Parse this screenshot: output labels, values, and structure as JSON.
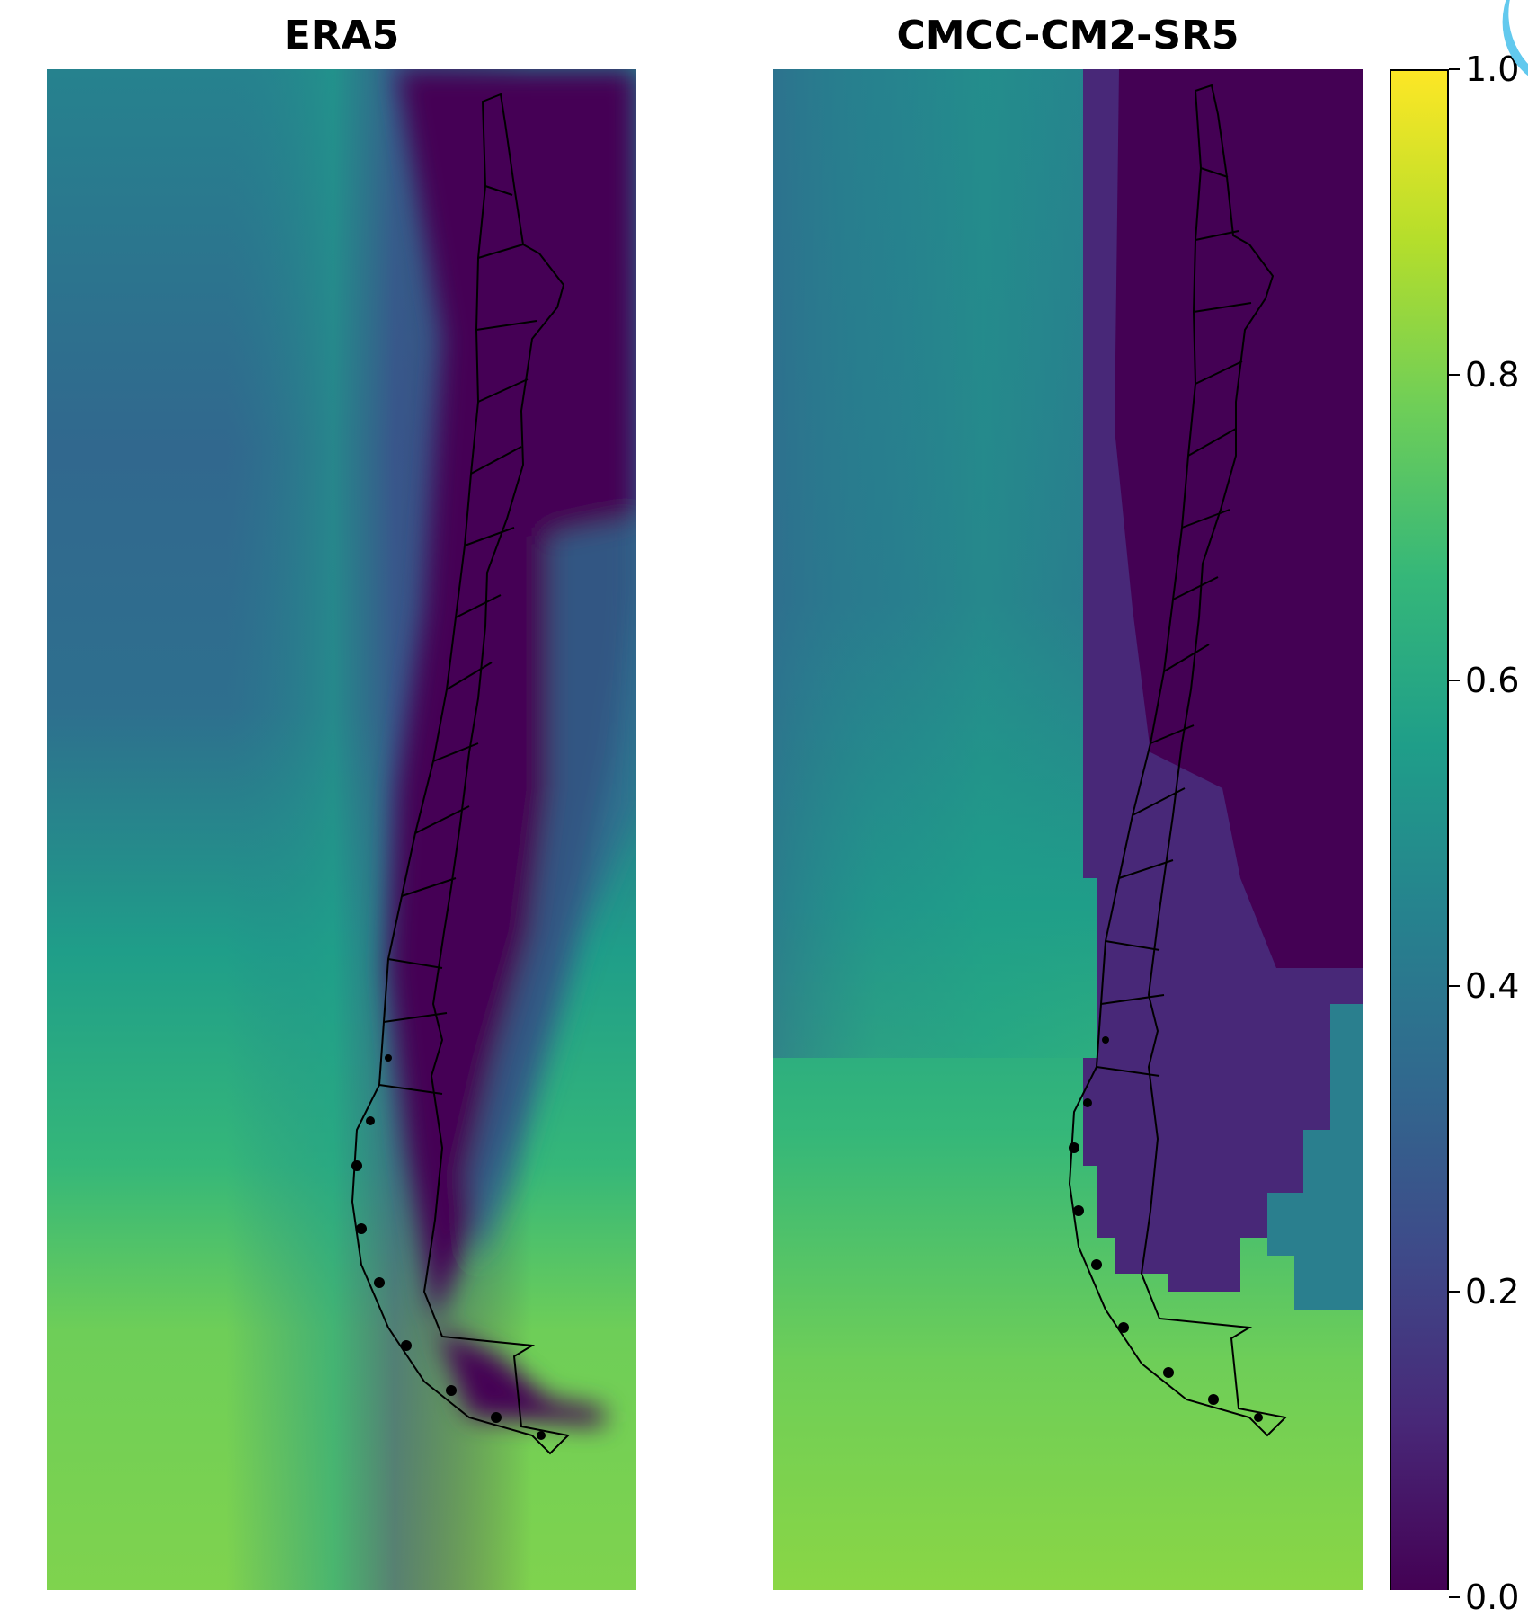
{
  "panels": [
    {
      "title": "ERA5"
    },
    {
      "title": "CMCC-CM2-SR5"
    }
  ],
  "colorbar": {
    "colormap": "viridis",
    "range": [
      0.0,
      1.0
    ],
    "ticks": [
      {
        "value": 1.0,
        "label": "1.0"
      },
      {
        "value": 0.8,
        "label": "0.8"
      },
      {
        "value": 0.6,
        "label": "0.6"
      },
      {
        "value": 0.4,
        "label": "0.4"
      },
      {
        "value": 0.2,
        "label": "0.2"
      },
      {
        "value": 0.0,
        "label": "0.0"
      }
    ],
    "colors": [
      "#440154",
      "#482878",
      "#3e4a89",
      "#31688e",
      "#26828e",
      "#1f9e89",
      "#35b779",
      "#6ece58",
      "#b5de2b",
      "#fde725"
    ]
  },
  "fields": [
    {
      "panel": "ERA5",
      "range": [
        0.0,
        0.75
      ]
    },
    {
      "panel": "CMCC-CM2-SR5",
      "range": [
        0.0,
        0.75
      ]
    }
  ],
  "outline_color": "#000000"
}
